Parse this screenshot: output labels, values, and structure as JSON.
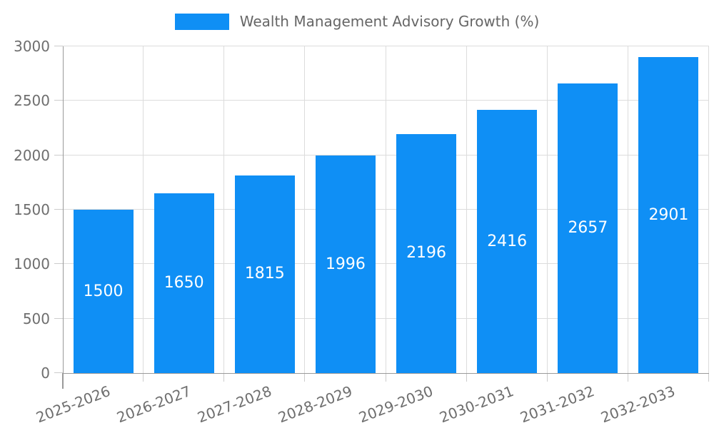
{
  "legend": {
    "label": "Wealth Management Advisory Growth (%)"
  },
  "chart_data": {
    "type": "bar",
    "title": "Wealth Management Advisory Growth (%)",
    "categories": [
      "2025-2026",
      "2026-2027",
      "2027-2028",
      "2028-2029",
      "2029-2030",
      "2030-2031",
      "2031-2032",
      "2032-2033"
    ],
    "series": [
      {
        "name": "Wealth Management Advisory Growth (%)",
        "values": [
          1500,
          1650,
          1815,
          1996,
          2196,
          2416,
          2657,
          2901
        ]
      }
    ],
    "values": [
      1500,
      1650,
      1815,
      1996,
      2196,
      2416,
      2657,
      2901
    ],
    "bar_value_labels": [
      "1500",
      "1650",
      "1815",
      "1996",
      "2196",
      "2416",
      "2657",
      "2901"
    ],
    "xlabel": "",
    "ylabel": "",
    "ylim": [
      0,
      3000
    ],
    "yticks": [
      0,
      500,
      1000,
      1500,
      2000,
      2500,
      3000
    ],
    "grid": true,
    "grid_vertical_at_boundaries": true,
    "legend_position": "top-center"
  },
  "colors": {
    "bar": "#0f8ff5",
    "grid": "#dcdcdc",
    "axis": "#9a9a9a",
    "tick_mark": "#cccccc",
    "tick_label": "#6e6e6e",
    "legend_text": "#666666",
    "bar_label": "#ffffff",
    "background": "#ffffff"
  }
}
